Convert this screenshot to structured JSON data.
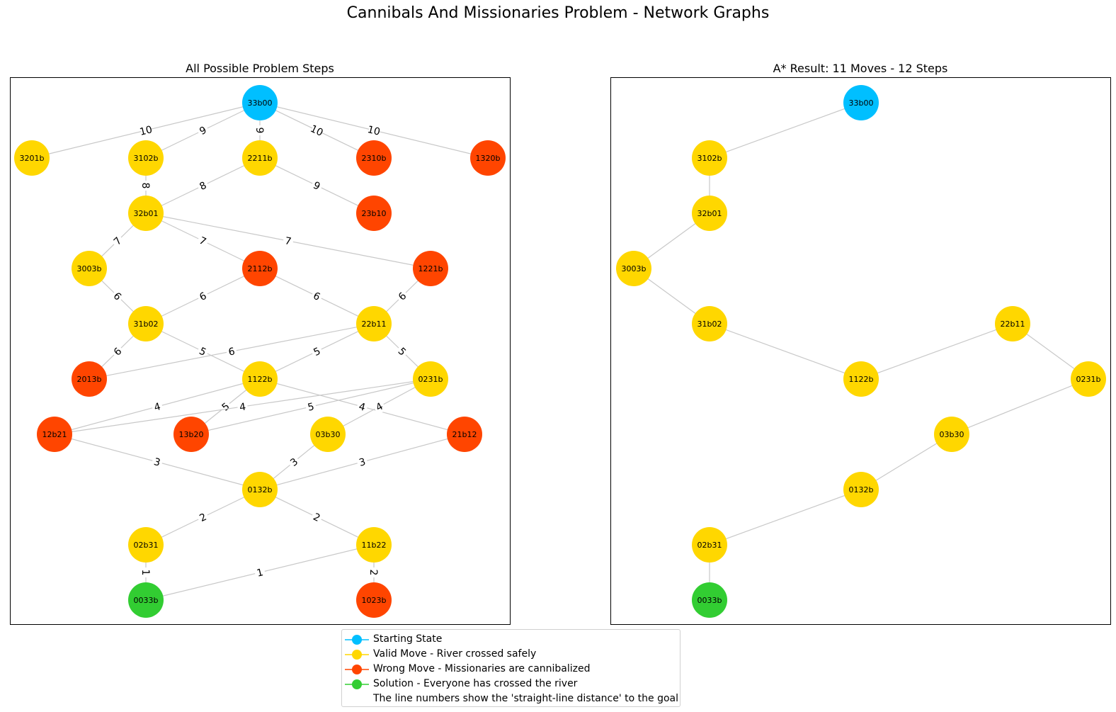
{
  "title": "Cannibals And Missionaries Problem - Network Graphs",
  "colors": {
    "start": "#00bfff",
    "valid": "#ffd700",
    "wrong": "#ff4500",
    "solution": "#32cd32"
  },
  "left_graph": {
    "title": "All Possible Problem Steps",
    "nodes": [
      {
        "id": "33b00",
        "type": "start"
      },
      {
        "id": "3201b",
        "type": "valid"
      },
      {
        "id": "3102b",
        "type": "valid"
      },
      {
        "id": "2211b",
        "type": "valid"
      },
      {
        "id": "2310b",
        "type": "wrong"
      },
      {
        "id": "1320b",
        "type": "wrong"
      },
      {
        "id": "32b01",
        "type": "valid"
      },
      {
        "id": "23b10",
        "type": "wrong"
      },
      {
        "id": "3003b",
        "type": "valid"
      },
      {
        "id": "2112b",
        "type": "wrong"
      },
      {
        "id": "1221b",
        "type": "wrong"
      },
      {
        "id": "31b02",
        "type": "valid"
      },
      {
        "id": "22b11",
        "type": "valid"
      },
      {
        "id": "2013b",
        "type": "wrong"
      },
      {
        "id": "1122b",
        "type": "valid"
      },
      {
        "id": "0231b",
        "type": "valid"
      },
      {
        "id": "12b21",
        "type": "wrong"
      },
      {
        "id": "13b20",
        "type": "wrong"
      },
      {
        "id": "03b30",
        "type": "valid"
      },
      {
        "id": "21b12",
        "type": "wrong"
      },
      {
        "id": "0132b",
        "type": "valid"
      },
      {
        "id": "02b31",
        "type": "valid"
      },
      {
        "id": "11b22",
        "type": "valid"
      },
      {
        "id": "0033b",
        "type": "solution"
      },
      {
        "id": "1023b",
        "type": "wrong"
      }
    ],
    "edges": [
      {
        "from": "33b00",
        "to": "3201b",
        "label": "10"
      },
      {
        "from": "33b00",
        "to": "3102b",
        "label": "9"
      },
      {
        "from": "33b00",
        "to": "2211b",
        "label": "9"
      },
      {
        "from": "33b00",
        "to": "2310b",
        "label": "10"
      },
      {
        "from": "33b00",
        "to": "1320b",
        "label": "10"
      },
      {
        "from": "3102b",
        "to": "32b01",
        "label": "8"
      },
      {
        "from": "2211b",
        "to": "32b01",
        "label": "8"
      },
      {
        "from": "2211b",
        "to": "23b10",
        "label": "9"
      },
      {
        "from": "32b01",
        "to": "3003b",
        "label": "7"
      },
      {
        "from": "32b01",
        "to": "2112b",
        "label": "7"
      },
      {
        "from": "32b01",
        "to": "1221b",
        "label": "7"
      },
      {
        "from": "3003b",
        "to": "31b02",
        "label": "6"
      },
      {
        "from": "2112b",
        "to": "31b02",
        "label": "6"
      },
      {
        "from": "2112b",
        "to": "22b11",
        "label": "6"
      },
      {
        "from": "1221b",
        "to": "22b11",
        "label": "6"
      },
      {
        "from": "31b02",
        "to": "2013b",
        "label": "6"
      },
      {
        "from": "31b02",
        "to": "1122b",
        "label": "5"
      },
      {
        "from": "22b11",
        "to": "2013b",
        "label": "6"
      },
      {
        "from": "22b11",
        "to": "1122b",
        "label": "5"
      },
      {
        "from": "22b11",
        "to": "0231b",
        "label": "5"
      },
      {
        "from": "1122b",
        "to": "12b21",
        "label": "4"
      },
      {
        "from": "1122b",
        "to": "13b20",
        "label": "5"
      },
      {
        "from": "1122b",
        "to": "21b12",
        "label": "4"
      },
      {
        "from": "0231b",
        "to": "12b21",
        "label": "4"
      },
      {
        "from": "0231b",
        "to": "13b20",
        "label": "5"
      },
      {
        "from": "0231b",
        "to": "03b30",
        "label": "4"
      },
      {
        "from": "12b21",
        "to": "0132b",
        "label": "3"
      },
      {
        "from": "03b30",
        "to": "0132b",
        "label": "3"
      },
      {
        "from": "21b12",
        "to": "0132b",
        "label": "3"
      },
      {
        "from": "0132b",
        "to": "02b31",
        "label": "2"
      },
      {
        "from": "0132b",
        "to": "11b22",
        "label": "2"
      },
      {
        "from": "02b31",
        "to": "0033b",
        "label": "1"
      },
      {
        "from": "11b22",
        "to": "0033b",
        "label": "1"
      },
      {
        "from": "11b22",
        "to": "1023b",
        "label": "2"
      }
    ]
  },
  "right_graph": {
    "title": "A* Result: 11 Moves - 12 Steps",
    "nodes": [
      {
        "id": "33b00",
        "type": "start"
      },
      {
        "id": "3102b",
        "type": "valid"
      },
      {
        "id": "32b01",
        "type": "valid"
      },
      {
        "id": "3003b",
        "type": "valid"
      },
      {
        "id": "31b02",
        "type": "valid"
      },
      {
        "id": "1122b",
        "type": "valid"
      },
      {
        "id": "22b11",
        "type": "valid"
      },
      {
        "id": "0231b",
        "type": "valid"
      },
      {
        "id": "03b30",
        "type": "valid"
      },
      {
        "id": "0132b",
        "type": "valid"
      },
      {
        "id": "02b31",
        "type": "valid"
      },
      {
        "id": "0033b",
        "type": "solution"
      }
    ],
    "edges": [
      {
        "from": "33b00",
        "to": "3102b"
      },
      {
        "from": "3102b",
        "to": "32b01"
      },
      {
        "from": "32b01",
        "to": "3003b"
      },
      {
        "from": "3003b",
        "to": "31b02"
      },
      {
        "from": "31b02",
        "to": "1122b"
      },
      {
        "from": "1122b",
        "to": "22b11"
      },
      {
        "from": "22b11",
        "to": "0231b"
      },
      {
        "from": "0231b",
        "to": "03b30"
      },
      {
        "from": "03b30",
        "to": "0132b"
      },
      {
        "from": "0132b",
        "to": "02b31"
      },
      {
        "from": "02b31",
        "to": "0033b"
      }
    ]
  },
  "legend": [
    {
      "type": "start",
      "label": "Starting State",
      "marker": true
    },
    {
      "type": "valid",
      "label": "Valid Move - River crossed safely",
      "marker": true
    },
    {
      "type": "wrong",
      "label": "Wrong Move - Missionaries are cannibalized",
      "marker": true
    },
    {
      "type": "solution",
      "label": "Solution - Everyone has crossed the river",
      "marker": true
    },
    {
      "type": "none",
      "label": "The line numbers show the 'straight-line distance' to the goal",
      "marker": false
    }
  ]
}
